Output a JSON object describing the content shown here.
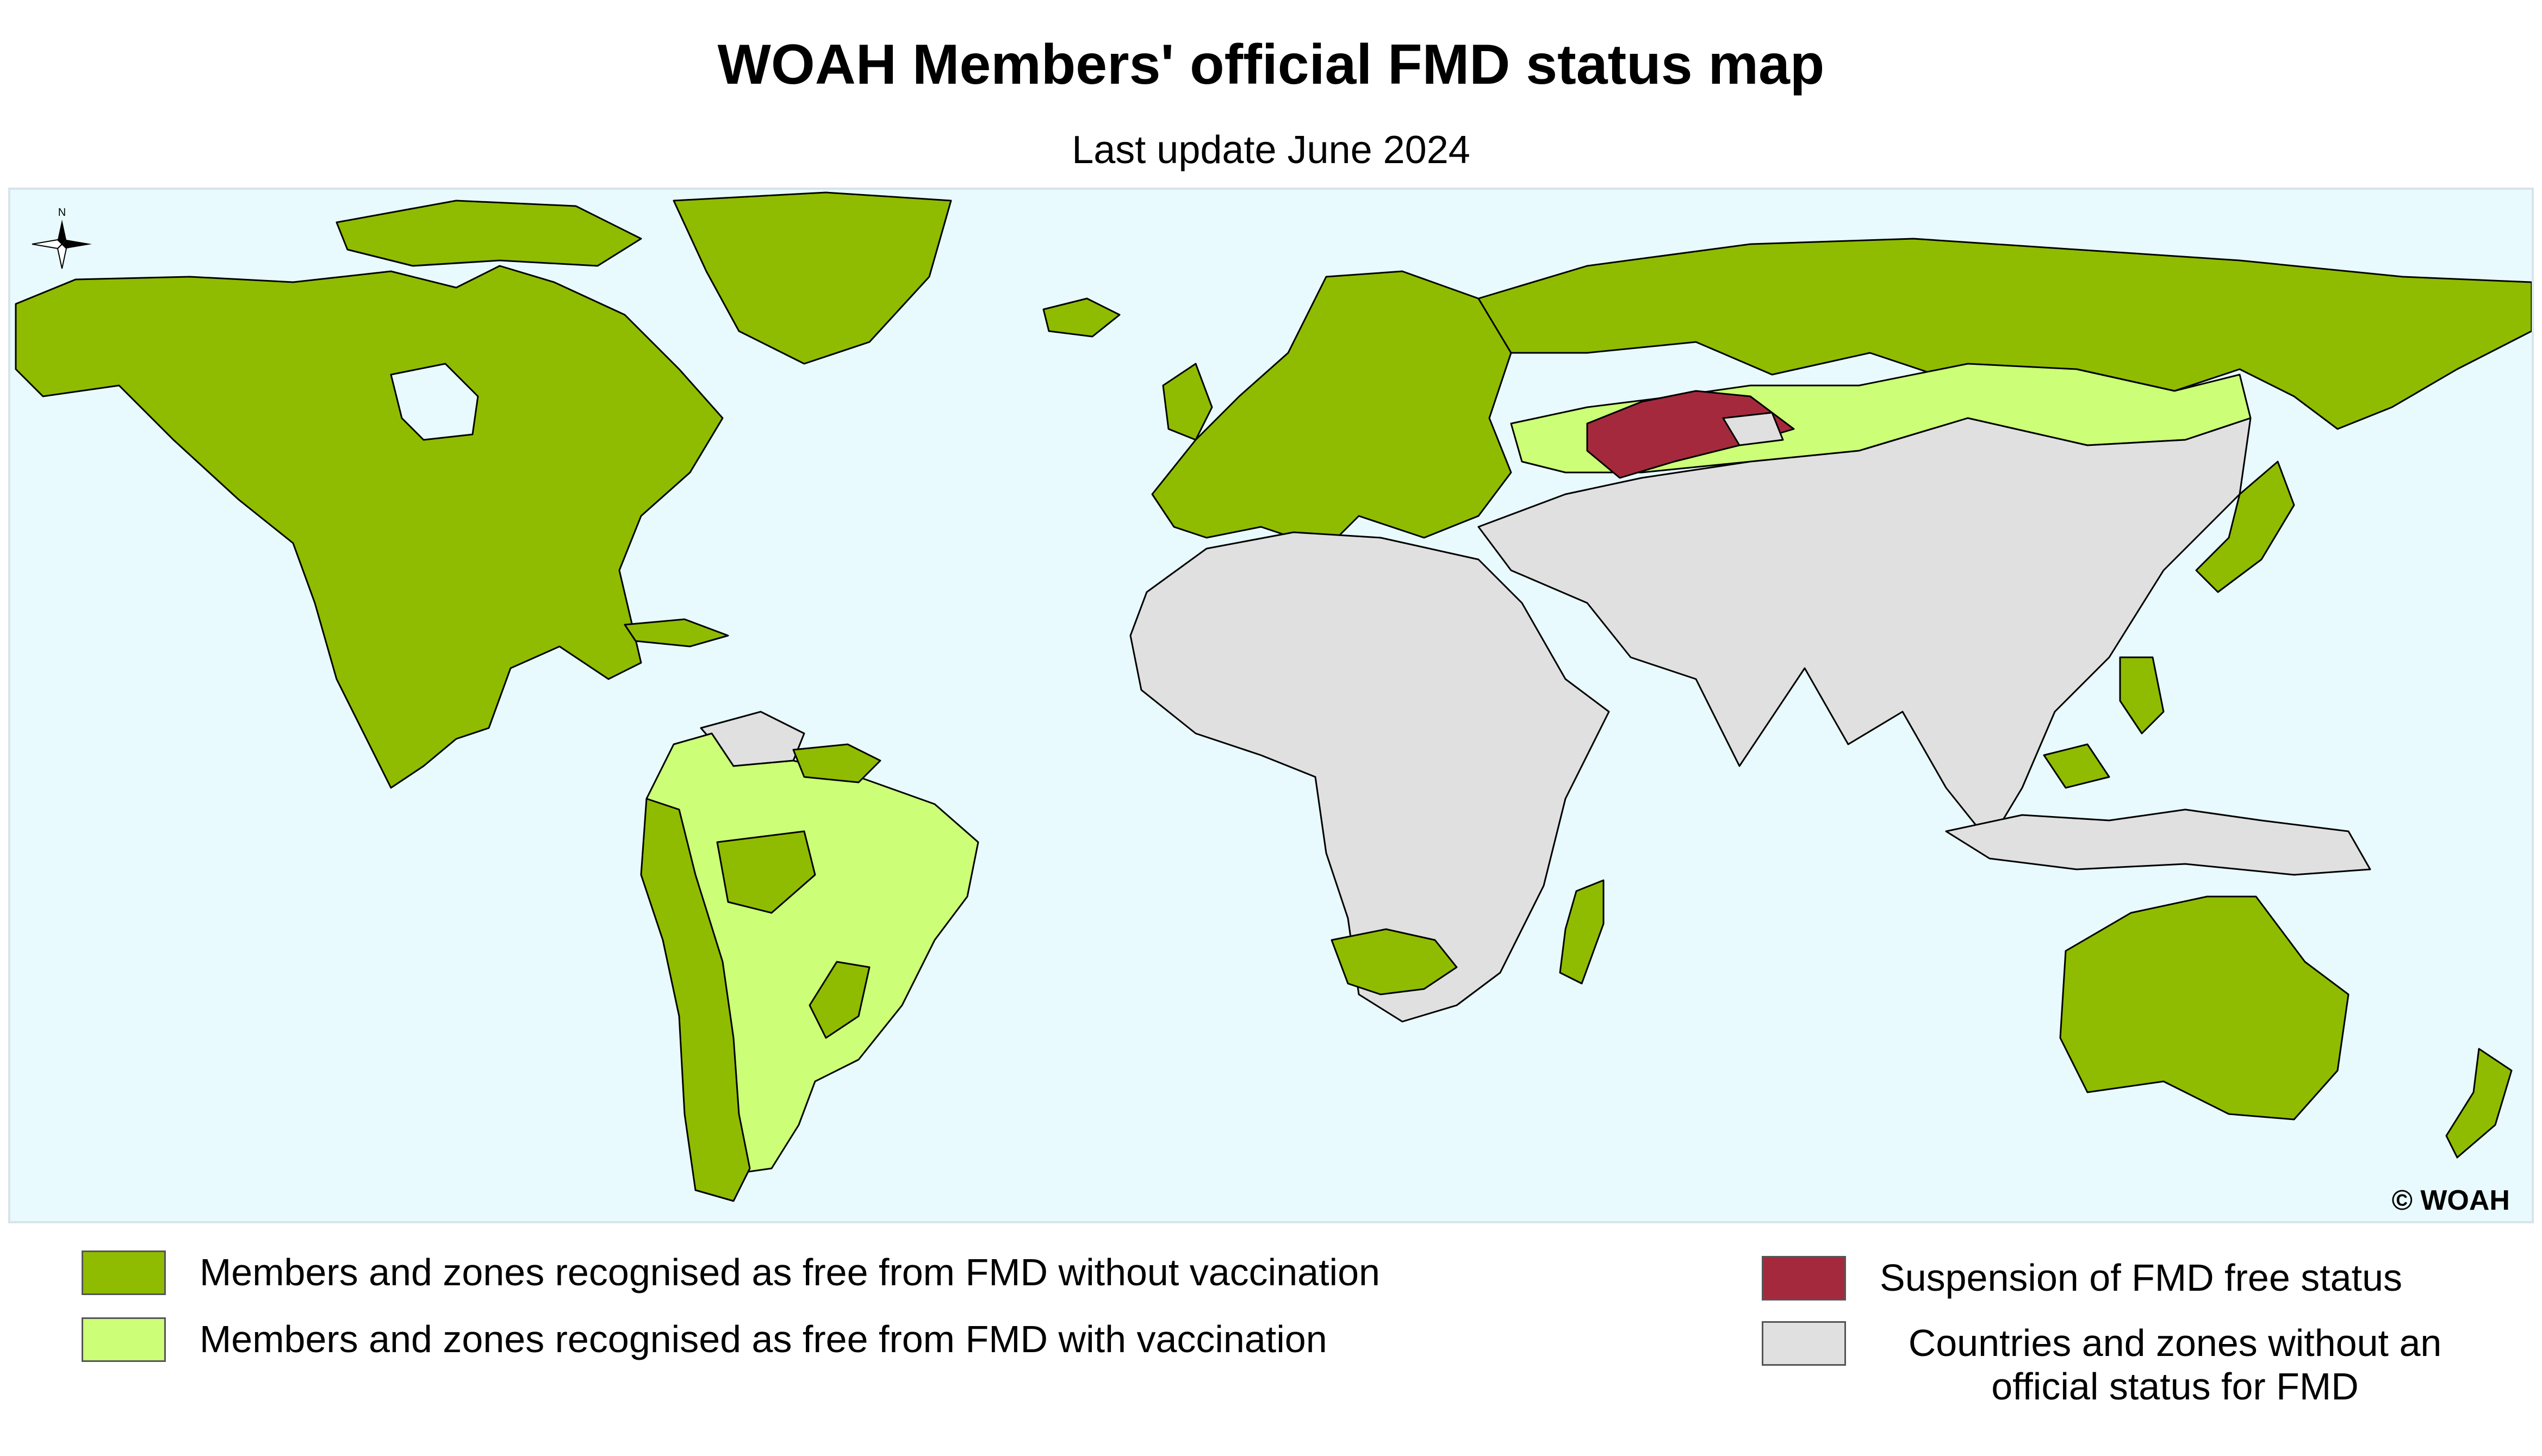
{
  "title": "WOAH Members' official FMD status map",
  "subtitle": "Last update June 2024",
  "copyright": "© WOAH",
  "north_arrow_label": "N",
  "colors": {
    "ocean": "#e8fafd",
    "free_without_vaccination": "#8fbc00",
    "free_with_vaccination": "#ccff77",
    "suspension": "#a5293d",
    "no_status": "#e0e0e0",
    "border": "#000000"
  },
  "legend": [
    {
      "label": "Members and zones recognised as free from FMD without vaccination",
      "color": "#8fbc00"
    },
    {
      "label": "Members and zones recognised as free from FMD with vaccination",
      "color": "#ccff77"
    },
    {
      "label": "Suspension of FMD free status",
      "color": "#a5293d"
    },
    {
      "label": "Countries and zones without an official status for FMD",
      "color": "#e0e0e0"
    }
  ]
}
